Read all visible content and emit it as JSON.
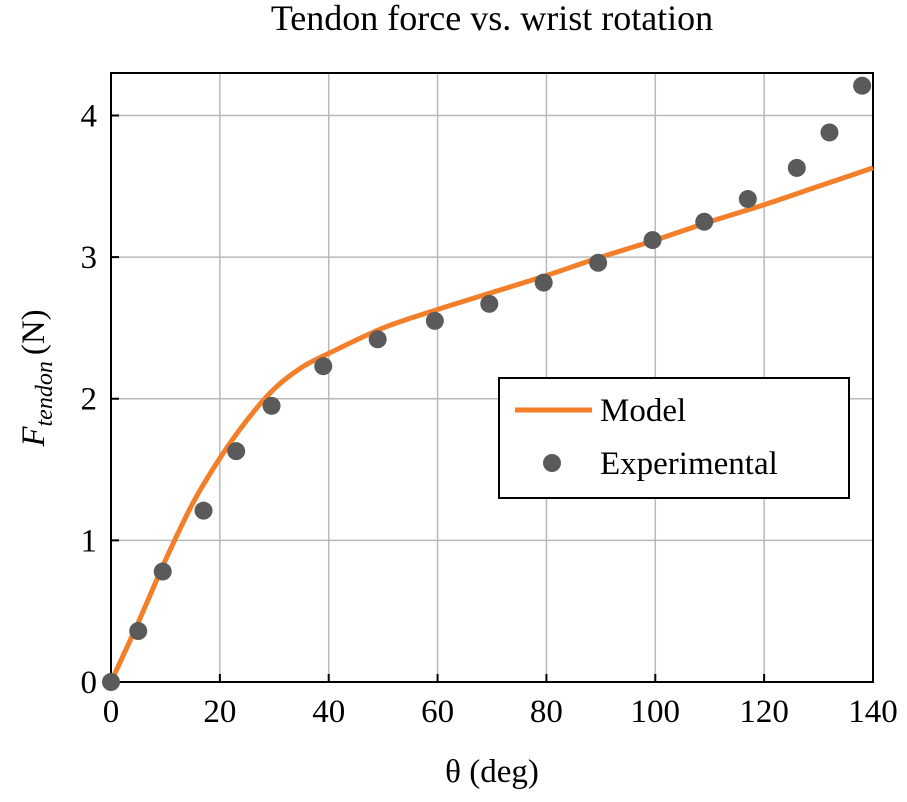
{
  "chart_data": {
    "type": "line",
    "title": "Tendon force vs. wrist rotation",
    "xlabel": "θ (deg)",
    "ylabel": {
      "base": "F",
      "subscript": "tendon",
      "unit": "(N)"
    },
    "xlim": [
      0,
      140
    ],
    "ylim": [
      0,
      4.3
    ],
    "xticks": [
      0,
      20,
      40,
      60,
      80,
      100,
      120,
      140
    ],
    "yticks": [
      0,
      1,
      2,
      3,
      4
    ],
    "grid": true,
    "legend": {
      "position": "center-right"
    },
    "series": [
      {
        "name": "Model",
        "kind": "line",
        "color": "#f47f2a",
        "x": [
          0,
          5,
          10,
          15,
          20,
          25,
          30,
          35,
          40,
          50,
          60,
          70,
          80,
          90,
          100,
          110,
          120,
          130,
          140
        ],
        "y": [
          0,
          0.42,
          0.86,
          1.26,
          1.58,
          1.85,
          2.07,
          2.22,
          2.32,
          2.5,
          2.63,
          2.75,
          2.87,
          3.0,
          3.12,
          3.25,
          3.37,
          3.5,
          3.63
        ]
      },
      {
        "name": "Experimental",
        "kind": "scatter",
        "color": "#5a5a5a",
        "x": [
          0,
          5,
          9.5,
          17,
          23,
          29.5,
          39,
          49,
          59.5,
          69.5,
          79.5,
          89.5,
          99.5,
          109,
          117,
          126,
          132,
          138
        ],
        "y": [
          0,
          0.36,
          0.78,
          1.21,
          1.63,
          1.95,
          2.23,
          2.42,
          2.55,
          2.67,
          2.82,
          2.96,
          3.12,
          3.25,
          3.41,
          3.63,
          3.88,
          4.21
        ]
      }
    ]
  }
}
